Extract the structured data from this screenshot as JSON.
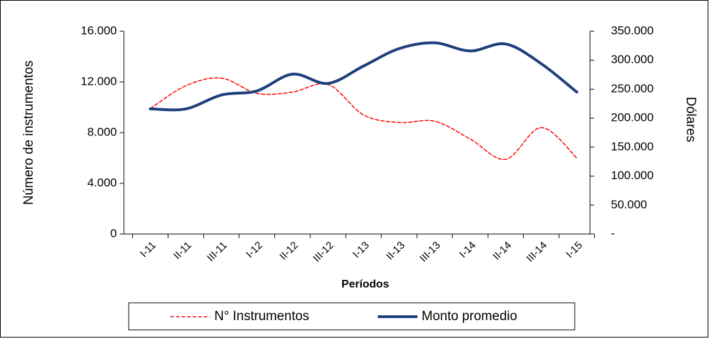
{
  "chart_data": {
    "type": "line",
    "x_label": "Períodos",
    "y_label": "Número de instrumentos",
    "y2_label": "Dólares",
    "categories": [
      "I-11",
      "II-11",
      "III-11",
      "I-12",
      "II-12",
      "III-12",
      "I-13",
      "II-13",
      "III-13",
      "I-14",
      "II-14",
      "III-14",
      "I-15"
    ],
    "series": [
      {
        "name": "N° Instrumentos",
        "color": "#ff0000",
        "dashed": true,
        "values": [
          9900,
          11700,
          12300,
          11100,
          11200,
          11800,
          9400,
          8800,
          8900,
          7500,
          5900,
          8400,
          6000
        ]
      },
      {
        "name": "Monto promedio",
        "color": "#1f3f7a",
        "axis": "y2",
        "values": [
          216000,
          216000,
          240000,
          247000,
          276000,
          260000,
          290000,
          320000,
          330000,
          316000,
          328000,
          294000,
          245000
        ]
      }
    ],
    "ylim": [
      0,
      16000
    ],
    "yticks": [
      0,
      {
        "value": 4000,
        "label": "4.000"
      },
      {
        "value": 8000,
        "label": "8.000"
      },
      {
        "value": 12000,
        "label": "12.000"
      },
      {
        "value": 16000,
        "label": "16.000"
      }
    ],
    "y2lim": [
      0,
      350000
    ],
    "y2ticks": [
      {
        "value": 0,
        "label": "-"
      },
      {
        "value": 50000,
        "label": "50.000"
      },
      {
        "value": 100000,
        "label": "100.000"
      },
      {
        "value": 150000,
        "label": "150.000"
      },
      {
        "value": 200000,
        "label": "200.000"
      },
      {
        "value": 250000,
        "label": "250.000"
      },
      {
        "value": 300000,
        "label": "300.000"
      },
      {
        "value": 350000,
        "label": "350.000"
      }
    ],
    "legend_position": "bottom"
  }
}
